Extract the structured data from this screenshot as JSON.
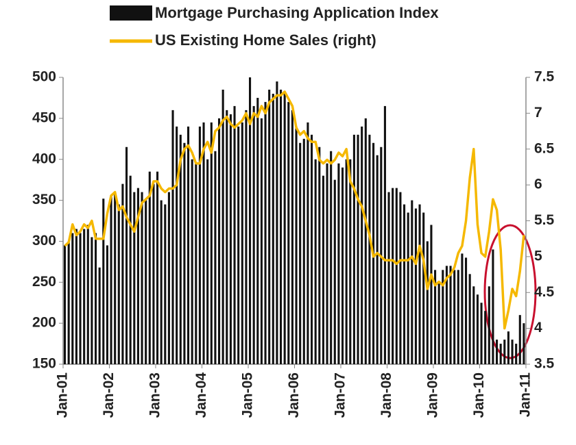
{
  "chart_data": {
    "type": "bar_line",
    "categories": [
      "Jan-01",
      null,
      null,
      null,
      null,
      null,
      null,
      null,
      null,
      null,
      null,
      null,
      "Jan-02",
      null,
      null,
      null,
      null,
      null,
      null,
      null,
      null,
      null,
      null,
      null,
      "Jan-03",
      null,
      null,
      null,
      null,
      null,
      null,
      null,
      null,
      null,
      null,
      null,
      "Jan-04",
      null,
      null,
      null,
      null,
      null,
      null,
      null,
      null,
      null,
      null,
      null,
      "Jan-05",
      null,
      null,
      null,
      null,
      null,
      null,
      null,
      null,
      null,
      null,
      null,
      "Jan-06",
      null,
      null,
      null,
      null,
      null,
      null,
      null,
      null,
      null,
      null,
      null,
      "Jan-07",
      null,
      null,
      null,
      null,
      null,
      null,
      null,
      null,
      null,
      null,
      null,
      "Jan-08",
      null,
      null,
      null,
      null,
      null,
      null,
      null,
      null,
      null,
      null,
      null,
      "Jan-09",
      null,
      null,
      null,
      null,
      null,
      null,
      null,
      null,
      null,
      null,
      null,
      "Jan-10",
      null,
      null,
      null,
      null,
      null,
      null,
      null,
      null,
      null,
      null,
      null,
      "Jan-11"
    ],
    "series": [
      {
        "name": "Mortgage Purchasing Application Index",
        "color": "#111111",
        "axis": "y",
        "values": [
          295,
          300,
          310,
          315,
          310,
          315,
          320,
          305,
          310,
          268,
          352,
          295,
          355,
          360,
          345,
          370,
          415,
          380,
          360,
          365,
          360,
          350,
          385,
          370,
          385,
          350,
          345,
          360,
          460,
          440,
          430,
          420,
          440,
          400,
          395,
          440,
          445,
          400,
          445,
          410,
          450,
          485,
          460,
          455,
          465,
          440,
          445,
          460,
          500,
          465,
          475,
          450,
          470,
          485,
          480,
          495,
          485,
          480,
          470,
          460,
          440,
          420,
          425,
          445,
          430,
          400,
          415,
          380,
          395,
          410,
          375,
          395,
          390,
          400,
          400,
          430,
          430,
          440,
          450,
          430,
          420,
          405,
          415,
          465,
          360,
          365,
          365,
          360,
          345,
          335,
          350,
          340,
          345,
          335,
          300,
          320,
          265,
          250,
          265,
          270,
          270,
          265,
          265,
          285,
          280,
          260,
          245,
          235,
          225,
          215,
          245,
          290,
          180,
          175,
          180,
          190,
          180,
          175,
          210,
          200,
          null
        ]
      },
      {
        "name": "US Existing Home Sales (right)",
        "color": "#f5b800",
        "axis": "y2",
        "values": [
          5.15,
          5.2,
          5.45,
          5.3,
          5.35,
          5.45,
          5.4,
          5.5,
          5.25,
          5.25,
          5.25,
          5.6,
          5.85,
          5.9,
          5.65,
          5.7,
          5.55,
          5.45,
          5.35,
          5.55,
          5.75,
          5.8,
          5.85,
          6.05,
          6.05,
          5.95,
          5.9,
          5.95,
          5.95,
          6.0,
          6.35,
          6.5,
          6.55,
          6.45,
          6.3,
          6.3,
          6.5,
          6.6,
          6.45,
          6.75,
          6.8,
          6.9,
          6.95,
          6.85,
          6.8,
          6.85,
          6.9,
          7.0,
          6.85,
          7.0,
          6.95,
          7.1,
          7.0,
          7.15,
          7.2,
          7.25,
          7.25,
          7.3,
          7.2,
          7.1,
          6.8,
          6.7,
          6.75,
          6.65,
          6.6,
          6.6,
          6.35,
          6.3,
          6.35,
          6.3,
          6.35,
          6.45,
          6.4,
          6.5,
          6.05,
          5.95,
          5.8,
          5.7,
          5.5,
          5.3,
          5.0,
          5.05,
          5.0,
          4.95,
          4.95,
          4.95,
          4.9,
          4.95,
          4.95,
          4.95,
          5.0,
          4.9,
          5.15,
          4.95,
          4.55,
          4.75,
          4.6,
          4.65,
          4.6,
          4.7,
          4.75,
          4.85,
          5.05,
          5.15,
          5.5,
          6.1,
          6.5,
          5.45,
          5.05,
          5.0,
          5.35,
          5.8,
          5.65,
          5.1,
          4.0,
          4.25,
          4.55,
          4.45,
          4.8,
          5.3,
          null
        ]
      }
    ],
    "ylim": [
      150,
      500
    ],
    "yticks": [
      150,
      200,
      250,
      300,
      350,
      400,
      450,
      500
    ],
    "y2lim": [
      3.5,
      7.5
    ],
    "y2ticks": [
      3.5,
      4,
      4.5,
      5,
      5.5,
      6,
      6.5,
      7,
      7.5
    ]
  }
}
